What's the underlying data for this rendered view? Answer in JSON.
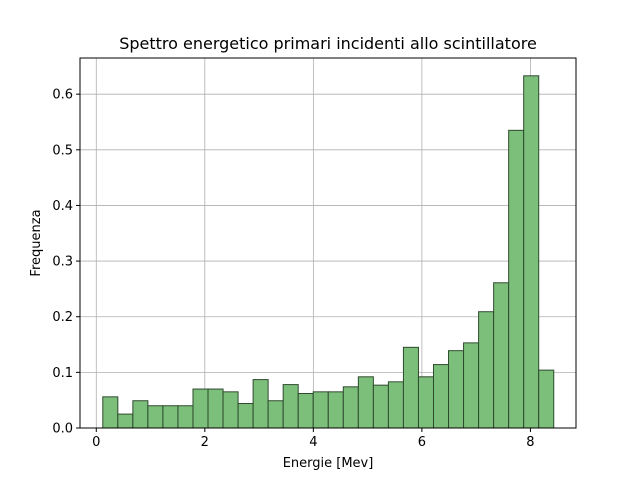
{
  "chart_data": {
    "type": "bar",
    "title": "Spettro energetico primari incidenti allo scintillatore",
    "xlabel": "Energie [Mev]",
    "ylabel": "Frequenza",
    "xlim": [
      -0.3,
      8.84
    ],
    "ylim": [
      0,
      0.665
    ],
    "xticks": [
      0,
      2,
      4,
      6,
      8
    ],
    "xtick_labels": [
      "0",
      "2",
      "4",
      "6",
      "8"
    ],
    "yticks": [
      0.0,
      0.1,
      0.2,
      0.3,
      0.4,
      0.5,
      0.6
    ],
    "ytick_labels": [
      "0.0",
      "0.1",
      "0.2",
      "0.3",
      "0.4",
      "0.5",
      "0.6"
    ],
    "grid": true,
    "bar_color": "#7cbf7a",
    "edge_color": "#2e4a2e",
    "bin_edges": [
      0.12,
      0.397,
      0.674,
      0.951,
      1.228,
      1.505,
      1.782,
      2.059,
      2.336,
      2.613,
      2.89,
      3.167,
      3.444,
      3.721,
      3.998,
      4.275,
      4.552,
      4.829,
      5.106,
      5.383,
      5.66,
      5.937,
      6.214,
      6.491,
      6.768,
      7.045,
      7.322,
      7.599,
      7.876,
      8.153,
      8.43
    ],
    "values": [
      0.056,
      0.025,
      0.049,
      0.04,
      0.04,
      0.04,
      0.07,
      0.07,
      0.065,
      0.044,
      0.087,
      0.049,
      0.078,
      0.062,
      0.065,
      0.065,
      0.074,
      0.092,
      0.077,
      0.083,
      0.145,
      0.092,
      0.114,
      0.139,
      0.153,
      0.209,
      0.261,
      0.535,
      0.633,
      0.104
    ]
  }
}
